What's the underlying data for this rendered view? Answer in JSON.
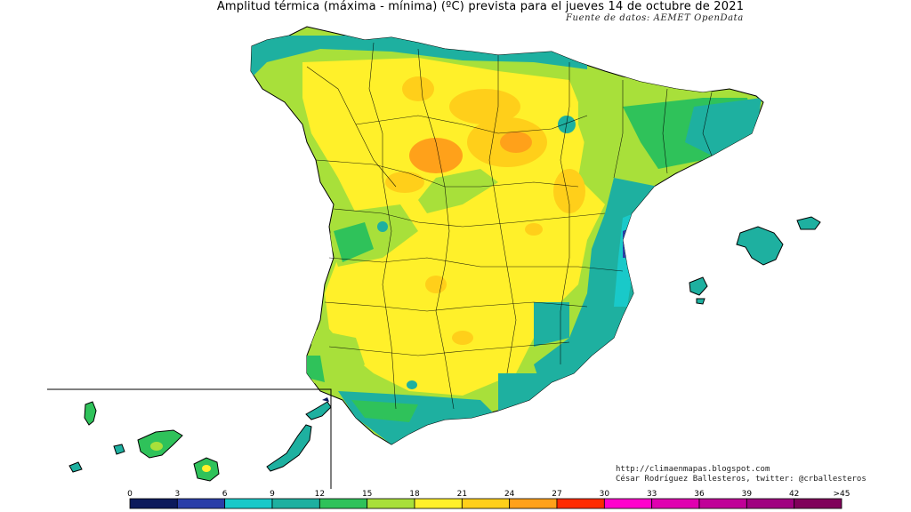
{
  "header": {
    "title": "Amplitud térmica (máxima - mínima) (ºC) prevista para el jueves 14 de octubre de 2021",
    "source": "Fuente de datos: AEMET OpenData"
  },
  "credits": {
    "blog": "http://climaenmapas.blogspot.com",
    "author": "César Rodríguez Ballesteros, twitter: @crballesteros"
  },
  "legend": {
    "ticks": [
      "0",
      "3",
      "6",
      "9",
      "12",
      "15",
      "18",
      "21",
      "24",
      "27",
      "30",
      "33",
      "36",
      "39",
      "42",
      ">45"
    ],
    "colors": [
      "#0c1a5c",
      "#2a3ea8",
      "#19c9c9",
      "#1eb0a0",
      "#2fc25a",
      "#a8e03a",
      "#fff02a",
      "#ffcf1a",
      "#ffa11a",
      "#ff2b00",
      "#ff00cc",
      "#e000b0",
      "#c00098",
      "#a00080",
      "#80005a"
    ]
  },
  "map": {
    "regions": [
      "mainland",
      "mallorca",
      "menorca",
      "ibiza",
      "tenerife",
      "gran-canaria",
      "lanzarote",
      "fuerteventura",
      "la-palma",
      "gomera",
      "hierro"
    ]
  }
}
